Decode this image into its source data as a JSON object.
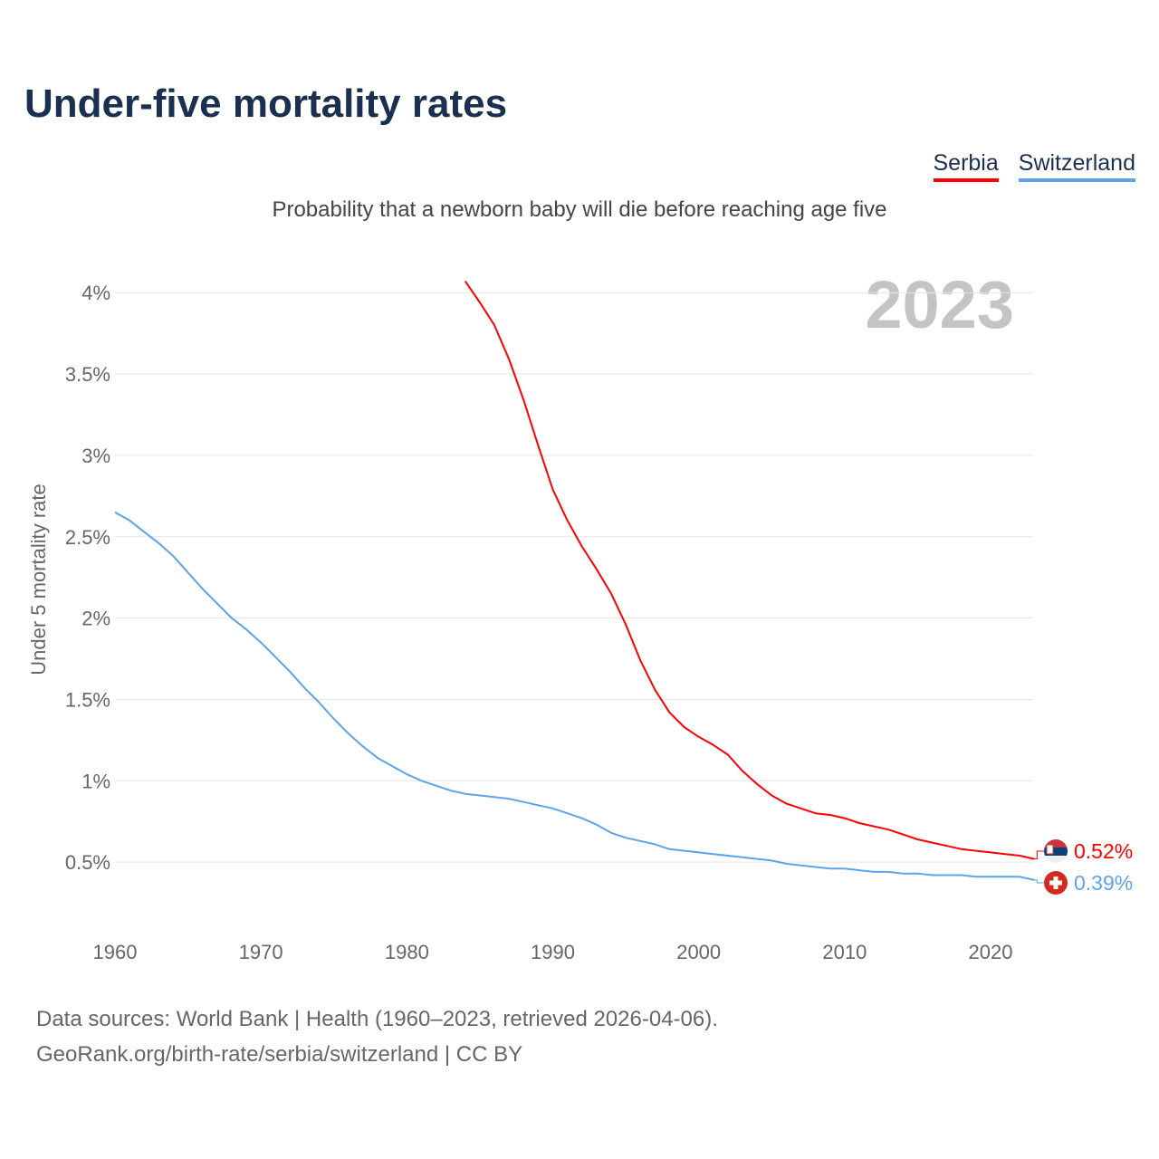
{
  "title": "Under-five mortality rates",
  "chart_data": {
    "type": "line",
    "title": "Under-five mortality rates",
    "subtitle": "Probability that a newborn baby will die before reaching age five",
    "xlabel": "",
    "ylabel": "Under 5 mortality rate",
    "year_label": "2023",
    "xlim": [
      1960,
      2023
    ],
    "ylim": [
      0,
      4.1
    ],
    "grid": true,
    "legend_position": "top-right",
    "x_ticks": [
      "1960",
      "1970",
      "1980",
      "1990",
      "2000",
      "2010",
      "2020"
    ],
    "y_ticks": [
      {
        "v": 0.5,
        "label": "0.5%"
      },
      {
        "v": 1,
        "label": "1%"
      },
      {
        "v": 1.5,
        "label": "1.5%"
      },
      {
        "v": 2,
        "label": "2%"
      },
      {
        "v": 2.5,
        "label": "2.5%"
      },
      {
        "v": 3,
        "label": "3%"
      },
      {
        "v": 3.5,
        "label": "3.5%"
      },
      {
        "v": 4,
        "label": "4%"
      }
    ],
    "series": [
      {
        "name": "Serbia",
        "color": "#ff0000",
        "end_label": "0.52%",
        "start_year": 1984,
        "values": [
          4.07,
          3.94,
          3.8,
          3.59,
          3.34,
          3.06,
          2.79,
          2.6,
          2.44,
          2.3,
          2.15,
          1.96,
          1.74,
          1.56,
          1.42,
          1.33,
          1.27,
          1.22,
          1.16,
          1.06,
          0.98,
          0.91,
          0.86,
          0.83,
          0.8,
          0.79,
          0.77,
          0.74,
          0.72,
          0.7,
          0.67,
          0.64,
          0.62,
          0.6,
          0.58,
          0.57,
          0.56,
          0.55,
          0.54,
          0.52
        ]
      },
      {
        "name": "Switzerland",
        "color": "#5ba4ec",
        "end_label": "0.39%",
        "start_year": 1960,
        "values": [
          2.65,
          2.6,
          2.53,
          2.46,
          2.38,
          2.28,
          2.18,
          2.09,
          2.0,
          1.93,
          1.85,
          1.76,
          1.67,
          1.57,
          1.48,
          1.38,
          1.29,
          1.21,
          1.14,
          1.09,
          1.04,
          1.0,
          0.97,
          0.94,
          0.92,
          0.91,
          0.9,
          0.89,
          0.87,
          0.85,
          0.83,
          0.8,
          0.77,
          0.73,
          0.68,
          0.65,
          0.63,
          0.61,
          0.58,
          0.57,
          0.56,
          0.55,
          0.54,
          0.53,
          0.52,
          0.51,
          0.49,
          0.48,
          0.47,
          0.46,
          0.46,
          0.45,
          0.44,
          0.44,
          0.43,
          0.43,
          0.42,
          0.42,
          0.42,
          0.41,
          0.41,
          0.41,
          0.41,
          0.39
        ]
      }
    ]
  },
  "footer": {
    "line1": "Data sources: World Bank | Health (1960–2023, retrieved 2026-04-06).",
    "line2": "GeoRank.org/birth-rate/serbia/switzerland | CC BY"
  }
}
